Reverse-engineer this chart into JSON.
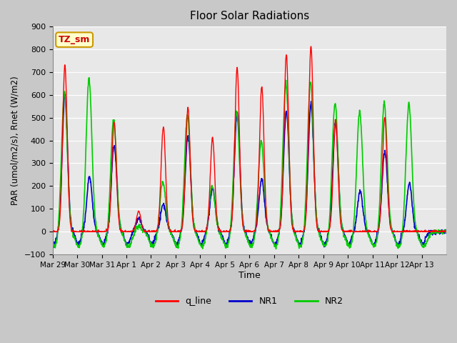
{
  "title": "Floor Solar Radiations",
  "xlabel": "Time",
  "ylabel": "PAR (umol/m2/s), Rnet (W/m2)",
  "ylim": [
    -100,
    900
  ],
  "yticks": [
    -100,
    0,
    100,
    200,
    300,
    400,
    500,
    600,
    700,
    800,
    900
  ],
  "x_tick_labels": [
    "Mar 29",
    "Mar 30",
    "Mar 31",
    "Apr 1",
    "Apr 2",
    "Apr 3",
    "Apr 4",
    "Apr 5",
    "Apr 6",
    "Apr 7",
    "Apr 8",
    "Apr 9",
    "Apr 10",
    "Apr 11",
    "Apr 12",
    "Apr 13"
  ],
  "annotation_text": "TZ_sm",
  "annotation_color": "#cc0000",
  "annotation_bg": "#ffffcc",
  "annotation_border": "#cc9900",
  "line_colors": {
    "q_line": "#ff0000",
    "NR1": "#0000cc",
    "NR2": "#00cc00"
  },
  "line_widths": {
    "q_line": 1.0,
    "NR1": 1.2,
    "NR2": 1.2
  },
  "bg_color": "#e8e8e8",
  "grid_color": "#ffffff",
  "day_peaks_q": [
    730,
    0,
    480,
    90,
    460,
    545,
    410,
    720,
    635,
    775,
    810,
    490,
    0,
    500,
    0,
    0
  ],
  "day_peaks_NR1": [
    600,
    240,
    380,
    60,
    120,
    420,
    190,
    520,
    230,
    530,
    560,
    480,
    175,
    350,
    210,
    0
  ],
  "day_peaks_NR2": [
    610,
    670,
    490,
    25,
    220,
    510,
    200,
    525,
    400,
    650,
    660,
    565,
    530,
    565,
    560,
    0
  ]
}
